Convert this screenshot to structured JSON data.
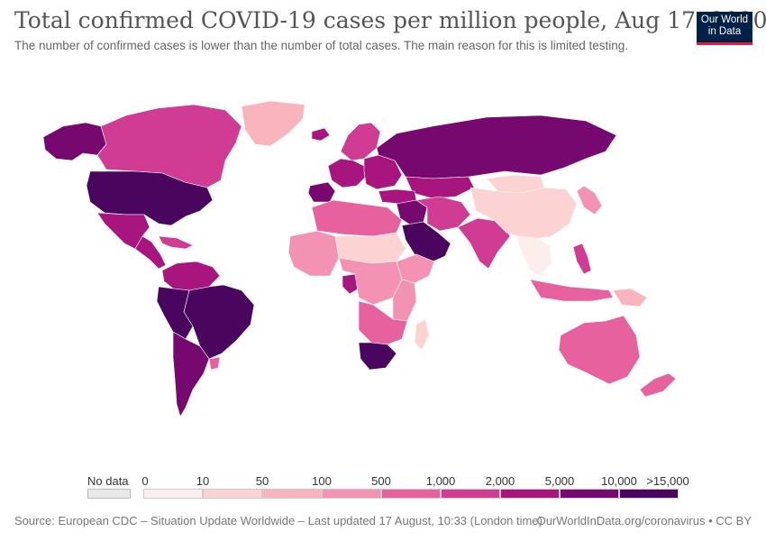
{
  "header": {
    "title": "Total confirmed COVID-19 cases per million people, Aug 17, 2020",
    "subtitle": "The number of confirmed cases is lower than the number of total cases. The main reason for this is limited testing."
  },
  "logo": {
    "line1": "Our World",
    "line2": "in Data"
  },
  "legend": {
    "no_data_label": "No data",
    "no_data_color": "#e9e9e9",
    "ticks": [
      "0",
      "10",
      "50",
      "100",
      "500",
      "1,000",
      "2,000",
      "5,000",
      "10,000",
      ">15,000"
    ],
    "bins": [
      {
        "color": "#fdeeee"
      },
      {
        "color": "#fcd2d3"
      },
      {
        "color": "#f9b4bd"
      },
      {
        "color": "#f392b2"
      },
      {
        "color": "#e8619f"
      },
      {
        "color": "#d03b93"
      },
      {
        "color": "#a8157f"
      },
      {
        "color": "#76086f"
      },
      {
        "color": "#4a055f"
      }
    ]
  },
  "footer": {
    "source": "Source: European CDC – Situation Update Worldwide – Last updated 17 August, 10:33 (London time)",
    "credit": "OurWorldInData.org/coronavirus • CC BY"
  },
  "regions": [
    {
      "name": "alaska",
      "color": "#76086f"
    },
    {
      "name": "canada",
      "color": "#d03b93"
    },
    {
      "name": "greenland",
      "color": "#f9b4bd"
    },
    {
      "name": "usa",
      "color": "#4a055f"
    },
    {
      "name": "mexico",
      "color": "#a8157f"
    },
    {
      "name": "central-america",
      "color": "#a8157f"
    },
    {
      "name": "caribbean",
      "color": "#d03b93"
    },
    {
      "name": "colombia-venezuela",
      "color": "#a8157f"
    },
    {
      "name": "brazil",
      "color": "#4a055f"
    },
    {
      "name": "peru-bolivia",
      "color": "#4a055f"
    },
    {
      "name": "chile-argentina",
      "color": "#76086f"
    },
    {
      "name": "uruguay",
      "color": "#e8619f"
    },
    {
      "name": "iceland",
      "color": "#a8157f"
    },
    {
      "name": "scandinavia",
      "color": "#d03b93"
    },
    {
      "name": "western-europe",
      "color": "#a8157f"
    },
    {
      "name": "iberia",
      "color": "#76086f"
    },
    {
      "name": "eastern-europe",
      "color": "#a8157f"
    },
    {
      "name": "russia",
      "color": "#76086f"
    },
    {
      "name": "kazakhstan",
      "color": "#a8157f"
    },
    {
      "name": "turkey",
      "color": "#a8157f"
    },
    {
      "name": "middle-east",
      "color": "#76086f"
    },
    {
      "name": "arabian-peninsula",
      "color": "#4a055f"
    },
    {
      "name": "iran-afghanistan",
      "color": "#d03b93"
    },
    {
      "name": "india",
      "color": "#d03b93"
    },
    {
      "name": "china",
      "color": "#fcd2d3"
    },
    {
      "name": "mongolia",
      "color": "#fcd2d3"
    },
    {
      "name": "southeast-asia",
      "color": "#fdeeee"
    },
    {
      "name": "japan-korea",
      "color": "#f392b2"
    },
    {
      "name": "philippines",
      "color": "#d03b93"
    },
    {
      "name": "indonesia",
      "color": "#e8619f"
    },
    {
      "name": "png",
      "color": "#f9b4bd"
    },
    {
      "name": "north-africa",
      "color": "#e8619f"
    },
    {
      "name": "west-africa",
      "color": "#f392b2"
    },
    {
      "name": "sahel",
      "color": "#fcd2d3"
    },
    {
      "name": "central-africa",
      "color": "#f392b2"
    },
    {
      "name": "east-africa",
      "color": "#f392b2"
    },
    {
      "name": "horn-of-africa",
      "color": "#f392b2"
    },
    {
      "name": "gabon",
      "color": "#a8157f"
    },
    {
      "name": "southern-africa",
      "color": "#e8619f"
    },
    {
      "name": "south-africa",
      "color": "#4a055f"
    },
    {
      "name": "madagascar",
      "color": "#fcd2d3"
    },
    {
      "name": "australia",
      "color": "#e8619f"
    },
    {
      "name": "new-zealand",
      "color": "#e8619f"
    }
  ]
}
